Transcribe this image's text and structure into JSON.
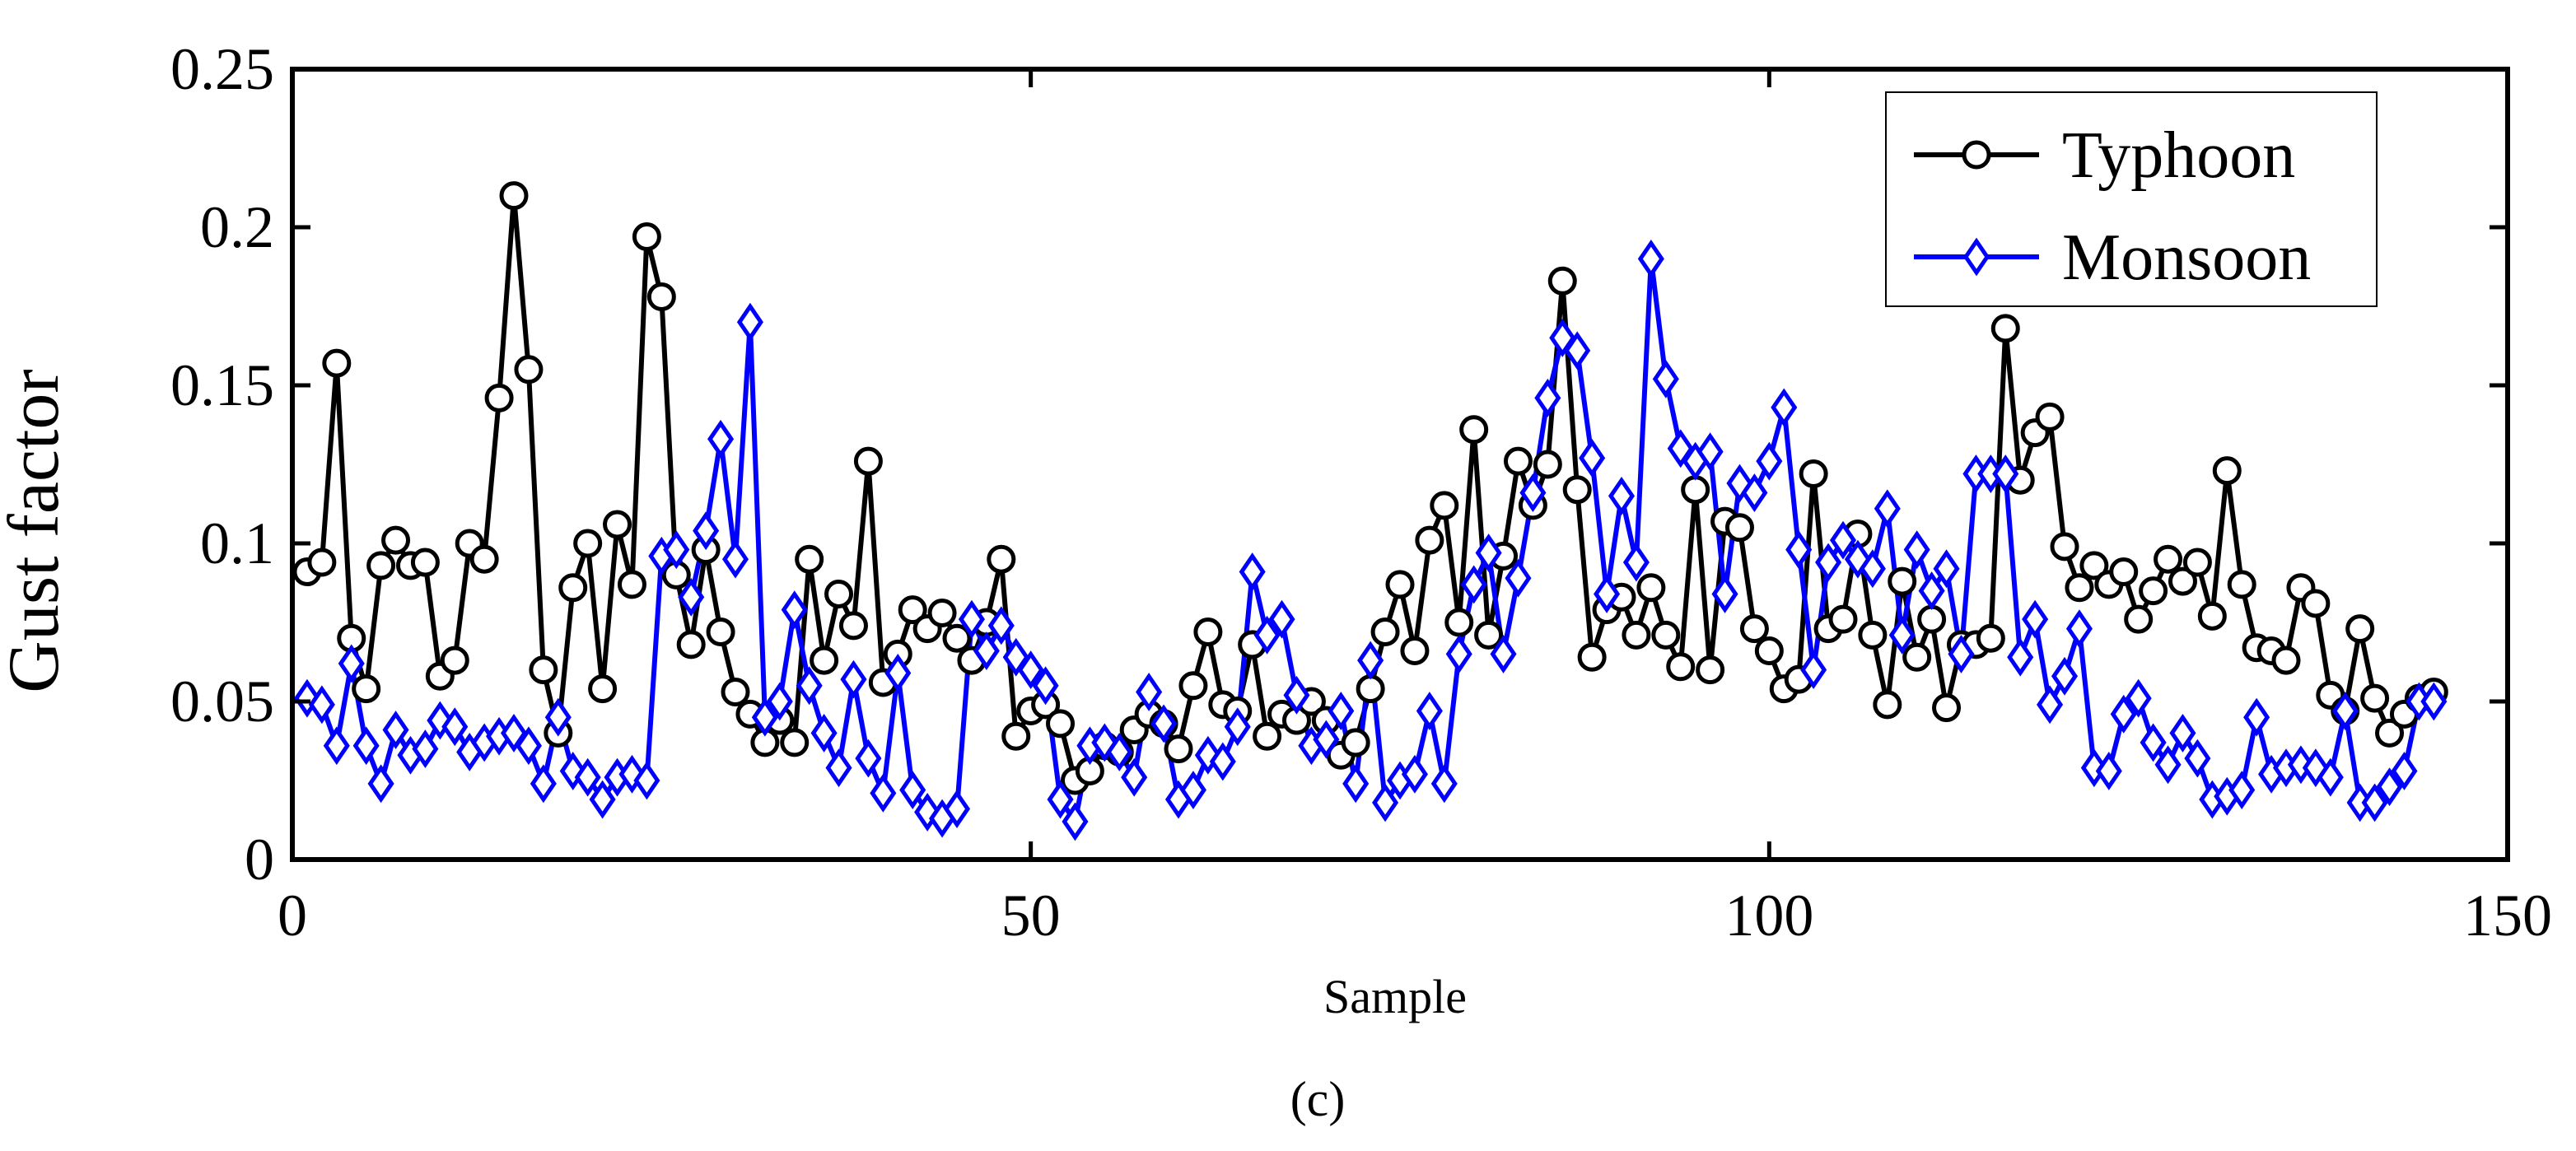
{
  "chart_data": {
    "type": "line",
    "title": "",
    "xlabel": "Sample",
    "ylabel": "Gust factor",
    "caption": "(c)",
    "xlim": [
      0,
      150
    ],
    "ylim": [
      0,
      0.25
    ],
    "xticks": [
      0,
      50,
      100,
      150
    ],
    "xtick_labels": [
      "0",
      "50",
      "100",
      "150"
    ],
    "yticks": [
      0,
      0.05,
      0.1,
      0.15,
      0.2,
      0.25
    ],
    "ytick_labels": [
      "0",
      "0.05",
      "0.1",
      "0.15",
      "0.2",
      "0.25"
    ],
    "grid": false,
    "legend_position": "top-right",
    "x": [
      1,
      2,
      3,
      4,
      5,
      6,
      7,
      8,
      9,
      10,
      11,
      12,
      13,
      14,
      15,
      16,
      17,
      18,
      19,
      20,
      21,
      22,
      23,
      24,
      25,
      26,
      27,
      28,
      29,
      30,
      31,
      32,
      33,
      34,
      35,
      36,
      37,
      38,
      39,
      40,
      41,
      42,
      43,
      44,
      45,
      46,
      47,
      48,
      49,
      50,
      51,
      52,
      53,
      54,
      55,
      56,
      57,
      58,
      59,
      60,
      61,
      62,
      63,
      64,
      65,
      66,
      67,
      68,
      69,
      70,
      71,
      72,
      73,
      74,
      75,
      76,
      77,
      78,
      79,
      80,
      81,
      82,
      83,
      84,
      85,
      86,
      87,
      88,
      89,
      90,
      91,
      92,
      93,
      94,
      95,
      96,
      97,
      98,
      99,
      100,
      101,
      102,
      103,
      104,
      105,
      106,
      107,
      108,
      109,
      110,
      111,
      112,
      113,
      114,
      115,
      116,
      117,
      118,
      119,
      120,
      121,
      122,
      123,
      124,
      125,
      126,
      127,
      128,
      129,
      130,
      131,
      132,
      133,
      134,
      135,
      136,
      137,
      138,
      139,
      140,
      141,
      142,
      143,
      144,
      145
    ],
    "series": [
      {
        "name": "Typhoon",
        "color": "#000000",
        "marker": "circle",
        "values": [
          0.091,
          0.094,
          0.157,
          0.07,
          0.054,
          0.093,
          0.101,
          0.093,
          0.094,
          0.058,
          0.063,
          0.1,
          0.095,
          0.146,
          0.21,
          0.155,
          0.06,
          0.04,
          0.086,
          0.1,
          0.054,
          0.106,
          0.087,
          0.197,
          0.178,
          0.09,
          0.068,
          0.098,
          0.072,
          0.053,
          0.046,
          0.037,
          0.044,
          0.037,
          0.095,
          0.063,
          0.084,
          0.074,
          0.126,
          0.056,
          0.065,
          0.079,
          0.073,
          0.078,
          0.07,
          0.063,
          0.075,
          0.095,
          0.039,
          0.047,
          0.049,
          0.043,
          0.025,
          0.028,
          0.036,
          0.034,
          0.041,
          0.046,
          0.043,
          0.035,
          0.055,
          0.072,
          0.049,
          0.047,
          0.068,
          0.039,
          0.046,
          0.044,
          0.05,
          0.044,
          0.033,
          0.037,
          0.054,
          0.072,
          0.087,
          0.066,
          0.101,
          0.112,
          0.075,
          0.136,
          0.071,
          0.096,
          0.126,
          0.112,
          0.125,
          0.183,
          0.117,
          0.064,
          0.079,
          0.083,
          0.071,
          0.086,
          0.071,
          0.061,
          0.117,
          0.06,
          0.107,
          0.105,
          0.073,
          0.066,
          0.054,
          0.057,
          0.122,
          0.073,
          0.076,
          0.103,
          0.071,
          0.049,
          0.088,
          0.064,
          0.076,
          0.048,
          0.068,
          0.068,
          0.07,
          0.168,
          0.12,
          0.135,
          0.14,
          0.099,
          0.086,
          0.093,
          0.087,
          0.091,
          0.076,
          0.085,
          0.095,
          0.088,
          0.094,
          0.077,
          0.123,
          0.087,
          0.067,
          0.066,
          0.063,
          0.086,
          0.081,
          0.052,
          0.047,
          0.073,
          0.051,
          0.04,
          0.046,
          0.051,
          0.053
        ]
      },
      {
        "name": "Monsoon",
        "color": "#0000ff",
        "marker": "diamond",
        "values": [
          0.051,
          0.049,
          0.036,
          0.062,
          0.036,
          0.024,
          0.041,
          0.033,
          0.035,
          0.044,
          0.042,
          0.034,
          0.037,
          0.039,
          0.04,
          0.036,
          0.024,
          0.045,
          0.028,
          0.026,
          0.019,
          0.026,
          0.027,
          0.025,
          0.096,
          0.098,
          0.083,
          0.104,
          0.133,
          0.095,
          0.17,
          0.045,
          0.05,
          0.079,
          0.055,
          0.04,
          0.029,
          0.057,
          0.032,
          0.021,
          0.059,
          0.022,
          0.015,
          0.013,
          0.016,
          0.076,
          0.066,
          0.074,
          0.064,
          0.06,
          0.055,
          0.019,
          0.012,
          0.036,
          0.037,
          0.034,
          0.026,
          0.053,
          0.043,
          0.019,
          0.022,
          0.033,
          0.031,
          0.042,
          0.091,
          0.071,
          0.076,
          0.052,
          0.036,
          0.038,
          0.047,
          0.024,
          0.063,
          0.018,
          0.025,
          0.027,
          0.047,
          0.024,
          0.065,
          0.087,
          0.097,
          0.065,
          0.089,
          0.116,
          0.146,
          0.165,
          0.161,
          0.127,
          0.084,
          0.115,
          0.094,
          0.19,
          0.152,
          0.13,
          0.126,
          0.129,
          0.084,
          0.119,
          0.116,
          0.126,
          0.143,
          0.098,
          0.06,
          0.094,
          0.101,
          0.095,
          0.092,
          0.111,
          0.071,
          0.098,
          0.085,
          0.092,
          0.065,
          0.122,
          0.122,
          0.122,
          0.064,
          0.076,
          0.049,
          0.058,
          0.073,
          0.029,
          0.028,
          0.046,
          0.051,
          0.037,
          0.03,
          0.04,
          0.032,
          0.019,
          0.02,
          0.022,
          0.045,
          0.027,
          0.029,
          0.03,
          0.029,
          0.026,
          0.047,
          0.018,
          0.018,
          0.023,
          0.028,
          0.05,
          0.05
        ]
      }
    ]
  }
}
